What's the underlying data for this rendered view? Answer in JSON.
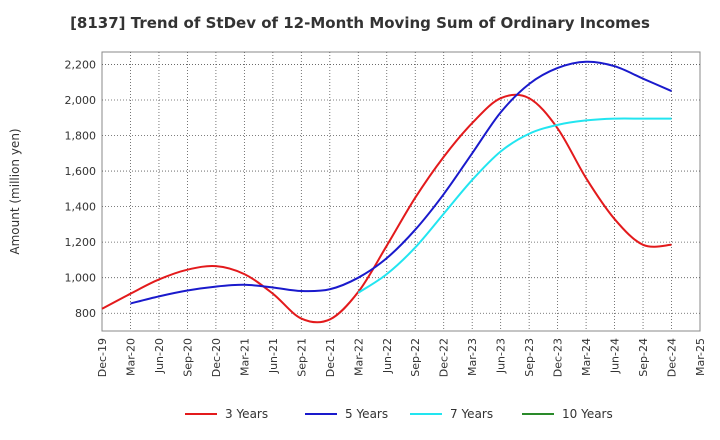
{
  "chart_data": {
    "type": "line",
    "title": "[8137]  Trend of StDev of 12-Month Moving Sum of Ordinary Incomes",
    "xlabel": "",
    "ylabel": "Amount (million yen)",
    "ylim": [
      700,
      2270
    ],
    "yticks": [
      800,
      1000,
      1200,
      1400,
      1600,
      1800,
      2000,
      2200
    ],
    "ytick_labels": [
      "800",
      "1,000",
      "1,200",
      "1,400",
      "1,600",
      "1,800",
      "2,000",
      "2,200"
    ],
    "xticks": [
      "Dec-19",
      "Mar-20",
      "Jun-20",
      "Sep-20",
      "Dec-20",
      "Mar-21",
      "Jun-21",
      "Sep-21",
      "Dec-21",
      "Mar-22",
      "Jun-22",
      "Sep-22",
      "Dec-22",
      "Mar-23",
      "Jun-23",
      "Sep-23",
      "Dec-23",
      "Mar-24",
      "Jun-24",
      "Sep-24",
      "Dec-24",
      "Mar-25"
    ],
    "grid": true,
    "legend_position": "bottom",
    "series": [
      {
        "name": "3 Years",
        "color": "#e31a1c",
        "values": [
          [
            "Dec-19",
            825
          ],
          [
            "Mar-20",
            910
          ],
          [
            "Jun-20",
            990
          ],
          [
            "Sep-20",
            1045
          ],
          [
            "Dec-20",
            1065
          ],
          [
            "Mar-21",
            1020
          ],
          [
            "Jun-21",
            910
          ],
          [
            "Sep-21",
            770
          ],
          [
            "Dec-21",
            765
          ],
          [
            "Mar-22",
            920
          ],
          [
            "Jun-22",
            1180
          ],
          [
            "Sep-22",
            1450
          ],
          [
            "Dec-22",
            1680
          ],
          [
            "Mar-23",
            1870
          ],
          [
            "Jun-23",
            2010
          ],
          [
            "Sep-23",
            2010
          ],
          [
            "Dec-23",
            1840
          ],
          [
            "Mar-24",
            1560
          ],
          [
            "Jun-24",
            1330
          ],
          [
            "Sep-24",
            1185
          ],
          [
            "Dec-24",
            1185
          ]
        ]
      },
      {
        "name": "5 Years",
        "color": "#1a1acc",
        "values": [
          [
            "Mar-20",
            855
          ],
          [
            "Jun-20",
            895
          ],
          [
            "Sep-20",
            928
          ],
          [
            "Dec-20",
            950
          ],
          [
            "Mar-21",
            960
          ],
          [
            "Jun-21",
            945
          ],
          [
            "Sep-21",
            925
          ],
          [
            "Dec-21",
            935
          ],
          [
            "Mar-22",
            1000
          ],
          [
            "Jun-22",
            1110
          ],
          [
            "Sep-22",
            1270
          ],
          [
            "Dec-22",
            1470
          ],
          [
            "Mar-23",
            1700
          ],
          [
            "Jun-23",
            1930
          ],
          [
            "Sep-23",
            2090
          ],
          [
            "Dec-23",
            2180
          ],
          [
            "Mar-24",
            2215
          ],
          [
            "Jun-24",
            2190
          ],
          [
            "Sep-24",
            2120
          ],
          [
            "Dec-24",
            2050
          ]
        ]
      },
      {
        "name": "7 Years",
        "color": "#22e5f0",
        "values": [
          [
            "Mar-22",
            915
          ],
          [
            "Jun-22",
            1020
          ],
          [
            "Sep-22",
            1170
          ],
          [
            "Dec-22",
            1360
          ],
          [
            "Mar-23",
            1550
          ],
          [
            "Jun-23",
            1710
          ],
          [
            "Sep-23",
            1810
          ],
          [
            "Dec-23",
            1860
          ],
          [
            "Mar-24",
            1885
          ],
          [
            "Jun-24",
            1895
          ],
          [
            "Sep-24",
            1895
          ],
          [
            "Dec-24",
            1895
          ]
        ]
      },
      {
        "name": "10 Years",
        "color": "#2a8a2a",
        "values": []
      }
    ]
  }
}
